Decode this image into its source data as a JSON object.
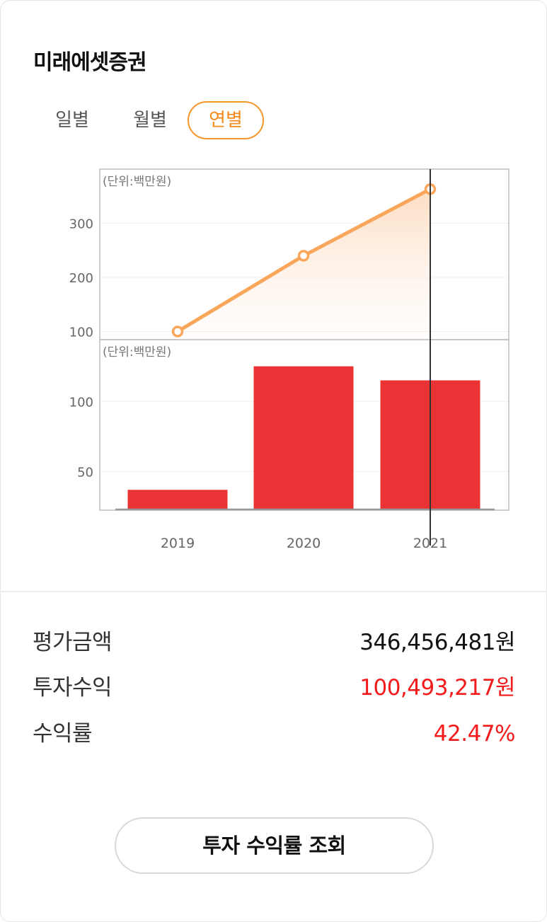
{
  "header": {
    "title": "미래에셋증권"
  },
  "tabs": [
    {
      "label": "일별",
      "active": false
    },
    {
      "label": "월별",
      "active": false
    },
    {
      "label": "연별",
      "active": true
    }
  ],
  "colors": {
    "accent": "#f5962a",
    "line": "#f9a65a",
    "bar": "#e93334",
    "loss_text": "#f21a1a"
  },
  "chart_data": [
    {
      "type": "line",
      "unit_label": "(단위:백만원)",
      "categories": [
        "2019",
        "2020",
        "2021"
      ],
      "values": [
        100,
        240,
        363
      ],
      "yticks": [
        "100",
        "200",
        "300"
      ],
      "ytick_values": [
        100,
        200,
        300
      ],
      "ylim": [
        85,
        400
      ],
      "grid": true
    },
    {
      "type": "bar",
      "unit_label": "(단위:백만원)",
      "categories": [
        "2019",
        "2020",
        "2021"
      ],
      "values": [
        37,
        125,
        115
      ],
      "yticks": [
        "100",
        "50"
      ],
      "ytick_values": [
        100,
        50
      ],
      "ylim": [
        23,
        144
      ],
      "xticks": [
        "2019",
        "2020",
        "2021"
      ],
      "selected_category": "2021"
    }
  ],
  "summary": [
    {
      "label": "평가금액",
      "value": "346,456,481원",
      "highlight": false
    },
    {
      "label": "투자수익",
      "value": "100,493,217원",
      "highlight": true
    },
    {
      "label": "수익률",
      "value": "42.47%",
      "highlight": true
    }
  ],
  "action": {
    "label": "투자 수익률 조회"
  }
}
